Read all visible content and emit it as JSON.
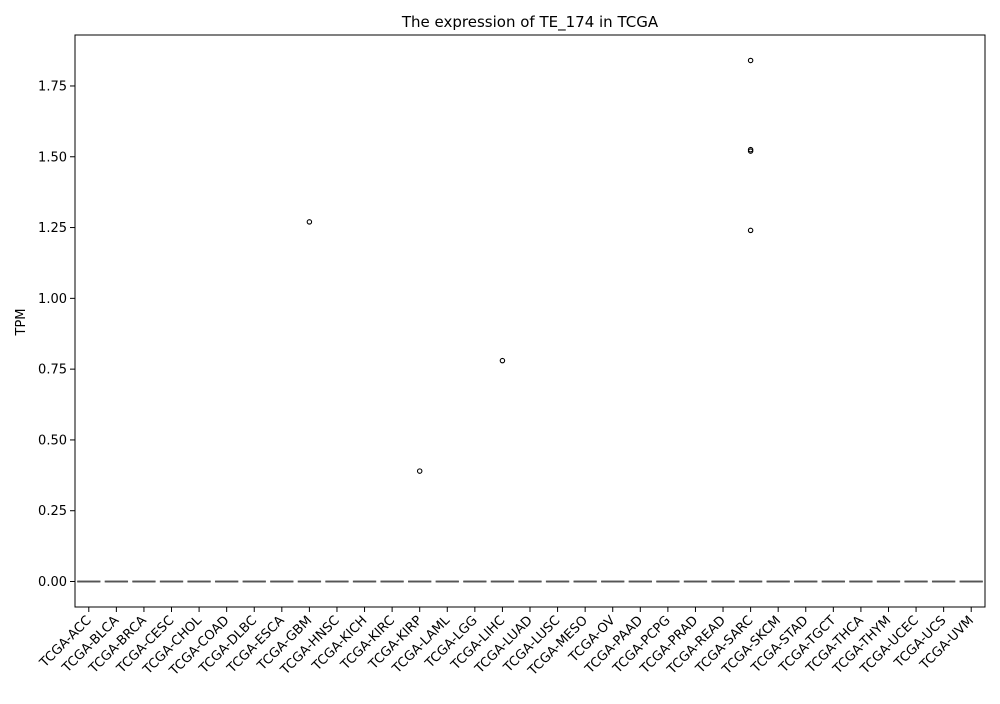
{
  "chart_data": {
    "type": "box",
    "title": "The expression of TE_174 in TCGA",
    "xlabel": "",
    "ylabel": "TPM",
    "ylim": [
      -0.09,
      1.93
    ],
    "yticks": [
      0.0,
      0.25,
      0.5,
      0.75,
      1.0,
      1.25,
      1.5,
      1.75
    ],
    "ytick_labels": [
      "0.00",
      "0.25",
      "0.50",
      "0.75",
      "1.00",
      "1.25",
      "1.50",
      "1.75"
    ],
    "grid": false,
    "categories": [
      "TCGA-ACC",
      "TCGA-BLCA",
      "TCGA-BRCA",
      "TCGA-CESC",
      "TCGA-CHOL",
      "TCGA-COAD",
      "TCGA-DLBC",
      "TCGA-ESCA",
      "TCGA-GBM",
      "TCGA-HNSC",
      "TCGA-KICH",
      "TCGA-KIRC",
      "TCGA-KIRP",
      "TCGA-LAML",
      "TCGA-LGG",
      "TCGA-LIHC",
      "TCGA-LUAD",
      "TCGA-LUSC",
      "TCGA-MESO",
      "TCGA-OV",
      "TCGA-PAAD",
      "TCGA-PCPG",
      "TCGA-PRAD",
      "TCGA-READ",
      "TCGA-SARC",
      "TCGA-SKCM",
      "TCGA-STAD",
      "TCGA-TGCT",
      "TCGA-THCA",
      "TCGA-THYM",
      "TCGA-UCEC",
      "TCGA-UCS",
      "TCGA-UVM"
    ],
    "box_values": {
      "min": [
        0,
        0,
        0,
        0,
        0,
        0,
        0,
        0,
        0,
        0,
        0,
        0,
        0,
        0,
        0,
        0,
        0,
        0,
        0,
        0,
        0,
        0,
        0,
        0,
        0,
        0,
        0,
        0,
        0,
        0,
        0,
        0,
        0
      ],
      "q1": [
        0,
        0,
        0,
        0,
        0,
        0,
        0,
        0,
        0,
        0,
        0,
        0,
        0,
        0,
        0,
        0,
        0,
        0,
        0,
        0,
        0,
        0,
        0,
        0,
        0,
        0,
        0,
        0,
        0,
        0,
        0,
        0,
        0
      ],
      "median": [
        0,
        0,
        0,
        0,
        0,
        0,
        0,
        0,
        0,
        0,
        0,
        0,
        0,
        0,
        0,
        0,
        0,
        0,
        0,
        0,
        0,
        0,
        0,
        0,
        0,
        0,
        0,
        0,
        0,
        0,
        0,
        0,
        0
      ],
      "q3": [
        0,
        0,
        0,
        0,
        0,
        0,
        0,
        0,
        0,
        0,
        0,
        0,
        0,
        0,
        0,
        0,
        0,
        0,
        0,
        0,
        0,
        0,
        0,
        0,
        0,
        0,
        0,
        0,
        0,
        0,
        0,
        0,
        0
      ],
      "max": [
        0,
        0,
        0,
        0,
        0,
        0,
        0,
        0,
        0,
        0,
        0,
        0,
        0,
        0,
        0,
        0,
        0,
        0,
        0,
        0,
        0,
        0,
        0,
        0,
        0,
        0,
        0,
        0,
        0,
        0,
        0,
        0,
        0
      ]
    },
    "outliers": [
      {
        "category": "TCGA-GBM",
        "value": 1.27
      },
      {
        "category": "TCGA-KIRP",
        "value": 0.39
      },
      {
        "category": "TCGA-LIHC",
        "value": 0.78
      },
      {
        "category": "TCGA-SARC",
        "value": 1.84
      },
      {
        "category": "TCGA-SARC",
        "value": 1.52
      },
      {
        "category": "TCGA-SARC",
        "value": 1.525
      },
      {
        "category": "TCGA-SARC",
        "value": 1.24
      }
    ],
    "colors": {
      "box_line": "#555555",
      "outlier_edge": "#000000",
      "axis": "#000000"
    }
  }
}
